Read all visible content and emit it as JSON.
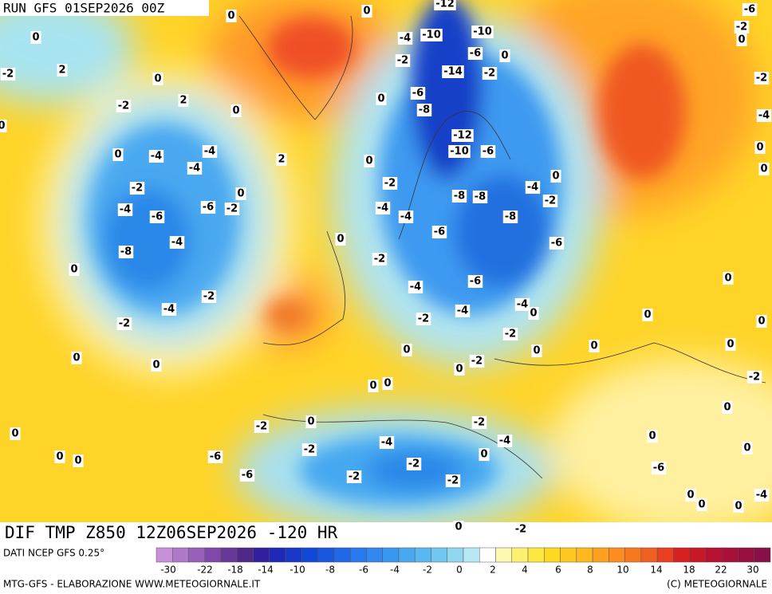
{
  "header": {
    "run": "RUN GFS 01SEP2026 00Z"
  },
  "map": {
    "title": "DIF TMP Z850 12Z06SEP2026 -120 HR",
    "labels": [
      -12,
      0,
      0,
      -6,
      -2,
      0,
      -4,
      -10,
      -10,
      0,
      -6,
      -2,
      2,
      -2,
      -14,
      -2,
      0,
      0,
      -2,
      0,
      -6,
      2,
      -2,
      0,
      -8,
      0,
      -4,
      -12,
      0,
      -4,
      -4,
      -10,
      -6,
      0,
      2,
      0,
      -4,
      0,
      0,
      -2,
      -2,
      -4,
      0,
      -8,
      -8,
      -2,
      -4,
      -6,
      -2,
      -4,
      -4,
      -6,
      -8,
      0,
      -6,
      -4,
      -6,
      -8,
      -2,
      0,
      -6,
      0,
      -4,
      -2,
      -4,
      -4,
      -4,
      0,
      0,
      -2,
      -2,
      0,
      -2,
      0,
      0,
      0,
      0,
      0,
      -2,
      0,
      0,
      0,
      0,
      -2,
      0,
      -2,
      0,
      -2,
      0,
      0,
      -4,
      -4,
      -2,
      0,
      0,
      0,
      -6,
      -2,
      0,
      -6,
      -2,
      -6,
      -2,
      0,
      0,
      0,
      -4,
      0,
      -2
    ]
  },
  "legend": {
    "source": "DATI NCEP GFS 0.25°",
    "colors": [
      "#c890d8",
      "#b078c8",
      "#9860b8",
      "#8048a8",
      "#683898",
      "#502888",
      "#3020a0",
      "#2028b8",
      "#1838c8",
      "#1048d8",
      "#1858e0",
      "#2068e8",
      "#2878f0",
      "#3088f0",
      "#3898f0",
      "#48a8f0",
      "#58b8f0",
      "#70c8f0",
      "#90d8f0",
      "#b8e8f4",
      "#ffffff",
      "#fff8b0",
      "#fff070",
      "#ffe840",
      "#ffd820",
      "#ffc820",
      "#ffb820",
      "#ffa020",
      "#ff8c20",
      "#f87820",
      "#f06020",
      "#e84020",
      "#d82020",
      "#c81828",
      "#b81030",
      "#a81038",
      "#981040",
      "#881048"
    ],
    "ticks": [
      -30,
      -22,
      -18,
      -14,
      -10,
      -8,
      -6,
      -4,
      -2,
      0,
      2,
      4,
      6,
      8,
      10,
      14,
      18,
      22,
      30
    ]
  },
  "footer": {
    "credit": "MTG-GFS - ELABORAZIONE WWW.METEOGIORNALE.IT",
    "copyright": "(C) METEOGIORNALE"
  }
}
